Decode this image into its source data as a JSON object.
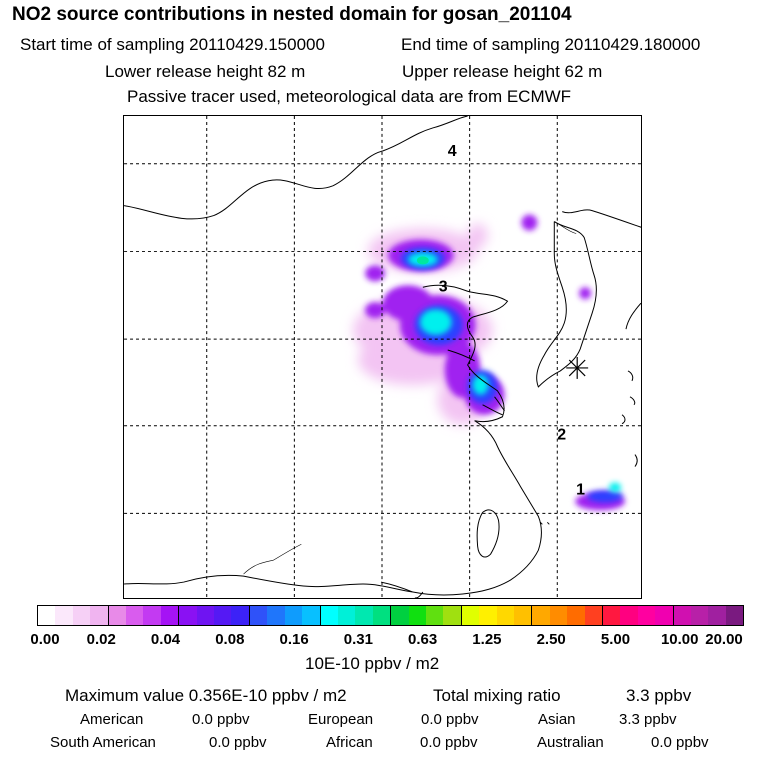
{
  "header": {
    "title": "NO2 source contributions in nested domain for gosan_201104",
    "start_label": "Start time of sampling 20110429.150000",
    "end_label": "End time of sampling 20110429.180000",
    "lower_label": "Lower release height   82 m",
    "upper_label": "Upper release height   62 m",
    "note": "Passive tracer used, meteorological data are from ECMWF"
  },
  "map": {
    "region_labels": [
      "1",
      "2",
      "3",
      "4"
    ]
  },
  "colorbar": {
    "ticks": [
      "0.00",
      "0.02",
      "0.04",
      "0.08",
      "0.16",
      "0.31",
      "0.63",
      "1.25",
      "2.50",
      "5.00",
      "10.00",
      "20.00"
    ],
    "unit": "10E-10 ppbv / m2",
    "colors": [
      "#ffffff",
      "#fbe8fb",
      "#f6d0f6",
      "#f0b4f0",
      "#e88ae8",
      "#d95cee",
      "#c33af2",
      "#a513f5",
      "#8a11f3",
      "#6f14f2",
      "#5519f4",
      "#3c22f7",
      "#2f52f9",
      "#1f76fb",
      "#0f9cfd",
      "#08c0ff",
      "#00ffff",
      "#00f0d8",
      "#00e8b0",
      "#00e080",
      "#00d040",
      "#10e010",
      "#60e010",
      "#a0e010",
      "#e0ff00",
      "#fff000",
      "#ffd800",
      "#ffc000",
      "#ffa800",
      "#ff8c00",
      "#ff6c00",
      "#ff4020",
      "#ff1840",
      "#ff0080",
      "#ff00a0",
      "#f000b0",
      "#d010b0",
      "#b820a8",
      "#a020a0",
      "#7a1a80"
    ]
  },
  "stats": {
    "max_label": "Maximum value  0.356E-10 ppbv / m2",
    "total_label": "Total mixing ratio",
    "total_value": "3.3 ppbv",
    "regions": [
      {
        "name": "American",
        "value": "0.0 ppbv"
      },
      {
        "name": "European",
        "value": "0.0 ppbv"
      },
      {
        "name": "Asian",
        "value": "3.3 ppbv"
      },
      {
        "name": "South American",
        "value": "0.0 ppbv"
      },
      {
        "name": "African",
        "value": "0.0 ppbv"
      },
      {
        "name": "Australian",
        "value": "0.0 ppbv"
      }
    ]
  }
}
